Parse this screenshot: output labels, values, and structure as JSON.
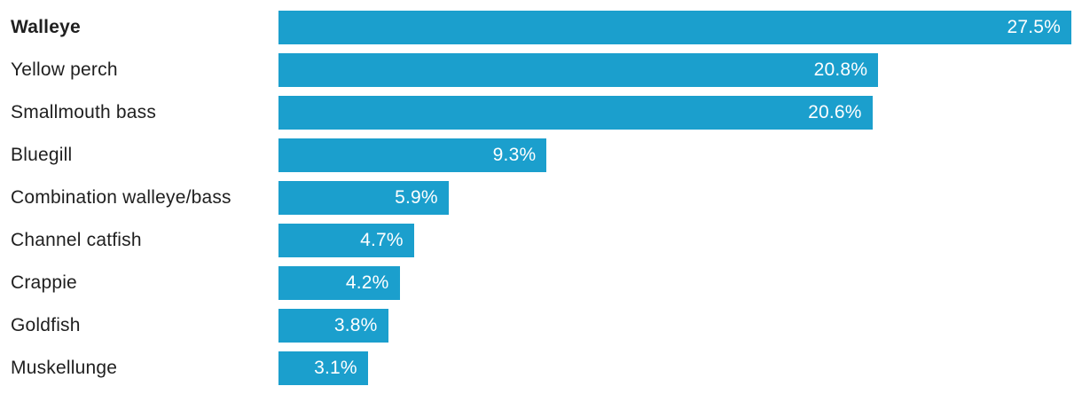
{
  "chart_data": {
    "type": "bar",
    "orientation": "horizontal",
    "title": "",
    "xlabel": "",
    "ylabel": "",
    "categories": [
      "Walleye",
      "Yellow perch",
      "Smallmouth bass",
      "Bluegill",
      "Combination walleye/bass",
      "Channel catfish",
      "Crappie",
      "Goldfish",
      "Muskellunge"
    ],
    "values": [
      27.5,
      20.8,
      20.6,
      9.3,
      5.9,
      4.7,
      4.2,
      3.8,
      3.1
    ],
    "value_labels": [
      "27.5%",
      "20.8%",
      "20.6%",
      "9.3%",
      "5.9%",
      "4.7%",
      "4.2%",
      "3.8%",
      "3.1%"
    ],
    "bold_categories": [
      "Walleye"
    ],
    "xlim": [
      0,
      27.5
    ],
    "grid": false,
    "legend": false,
    "axis_lines": false,
    "colors": {
      "bar": "#1B9FCD",
      "value_label": "#FFFFFF",
      "category_label": "#1F1F1F",
      "background": "#FFFFFF"
    }
  }
}
